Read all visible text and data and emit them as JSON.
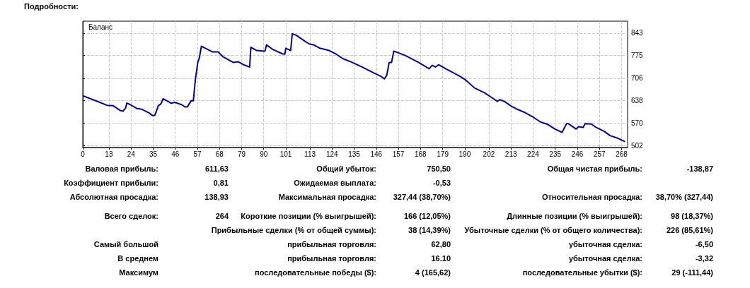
{
  "chart_data": {
    "type": "line",
    "title": "Подробности:",
    "x": [
      0,
      8.5,
      12,
      15,
      18.4,
      20,
      21.3,
      21.9,
      23.6,
      27,
      29.4,
      32.9,
      34.7,
      35.9,
      37.6,
      38.8,
      40,
      44,
      45.7,
      49.2,
      50.9,
      52,
      53.9,
      55,
      56,
      57.2,
      58,
      59,
      61,
      64.4,
      67.3,
      69.6,
      74.8,
      77.2,
      80,
      83,
      83.6,
      86.5,
      90.6,
      91.4,
      94.6,
      99.3,
      100.5,
      101,
      103.4,
      104.2,
      106.3,
      111,
      112.7,
      115,
      117.9,
      122.6,
      126,
      129.5,
      134,
      138.9,
      144.8,
      148.3,
      150,
      151.2,
      152.4,
      153.6,
      154.7,
      157,
      160,
      162.3,
      167,
      172.3,
      173.8,
      175.4,
      177,
      181,
      187,
      190.4,
      195,
      199.8,
      203.3,
      206.2,
      207.4,
      209.7,
      212.7,
      216.1,
      219.6,
      224.3,
      227.8,
      231.3,
      234.9,
      238.4,
      240.7,
      241.9,
      245.4,
      246.6,
      248.9,
      249.8,
      253,
      254.8,
      259.4,
      262.3,
      265.8,
      269.7
    ],
    "series": [
      {
        "name": "Баланс",
        "color": "#0000a0",
        "values": [
          653,
          633,
          624,
          623,
          609,
          606,
          616,
          631,
          626,
          614,
          612,
          601,
          593,
          594,
          623,
          628,
          644,
          630,
          633,
          626,
          619,
          619,
          638,
          638,
          701,
          754,
          768,
          803,
          797,
          786,
          786,
          772,
          754,
          756,
          747,
          740,
          800,
          790,
          788,
          807,
          793,
          780,
          779,
          797,
          790,
          841,
          836,
          816,
          810,
          807,
          797,
          790,
          779,
          765,
          754,
          740,
          722,
          712,
          704,
          715,
          754,
          754,
          788,
          783,
          776,
          769,
          754,
          735,
          745,
          740,
          747,
          733,
          714,
          701,
          676,
          662,
          648,
          636,
          641,
          636,
          623,
          612,
          603,
          587,
          573,
          566,
          552,
          542,
          569,
          567,
          552,
          559,
          557,
          568,
          567,
          559,
          545,
          532,
          525,
          514
        ]
      }
    ],
    "xlim": [
      0,
      271
    ],
    "xticks": [
      0,
      13,
      24,
      35,
      46,
      57,
      68,
      79,
      90,
      101,
      113,
      124,
      135,
      146,
      157,
      168,
      179,
      190,
      202,
      213,
      224,
      235,
      246,
      257,
      268
    ],
    "ylim": [
      496,
      879
    ],
    "yticks": [
      502,
      570,
      638,
      706,
      775,
      843
    ],
    "grid": true,
    "legend": "top left",
    "marker": "none",
    "line_style": "solid",
    "annotations": [
      "Валовая прибыль:",
      "611,63",
      "Общий убыток:",
      "750,50",
      "Общая чистая прибыль:",
      "-138,87",
      "Коэффициент прибыли:",
      "0,81",
      "Ожидаемая выплата:",
      "-0,53",
      null,
      null,
      "Абсолютная просадка:",
      "138,93",
      "Максимальная просадка:",
      "327,44 (38,70%)",
      "Относительная просадка:",
      "38,70% (327,44)",
      "Всего сделок:",
      "264",
      "Короткие позиции (% выигрышей):",
      "166 (12,05%)",
      "Длинные позиции (% выигрышей):",
      "98 (18,37%)",
      null,
      null,
      "Прибыльные сделки (% от общей суммы):",
      "38 (14,39%)",
      "Убыточные сделки (% от общего количества):",
      "226 (85,61%)",
      "Самый большой",
      null,
      "прибыльная торговля:",
      "62,80",
      "убыточная сделка:",
      "-6,50",
      "В среднем",
      null,
      "прибыльная торговля:",
      "16.10",
      "убыточная сделка:",
      "-3,32",
      "Максимум",
      null,
      "последовательные победы ($):",
      "4 (165,62)",
      "последовательные убытки ($):",
      "29 (-111,44)"
    ]
  }
}
